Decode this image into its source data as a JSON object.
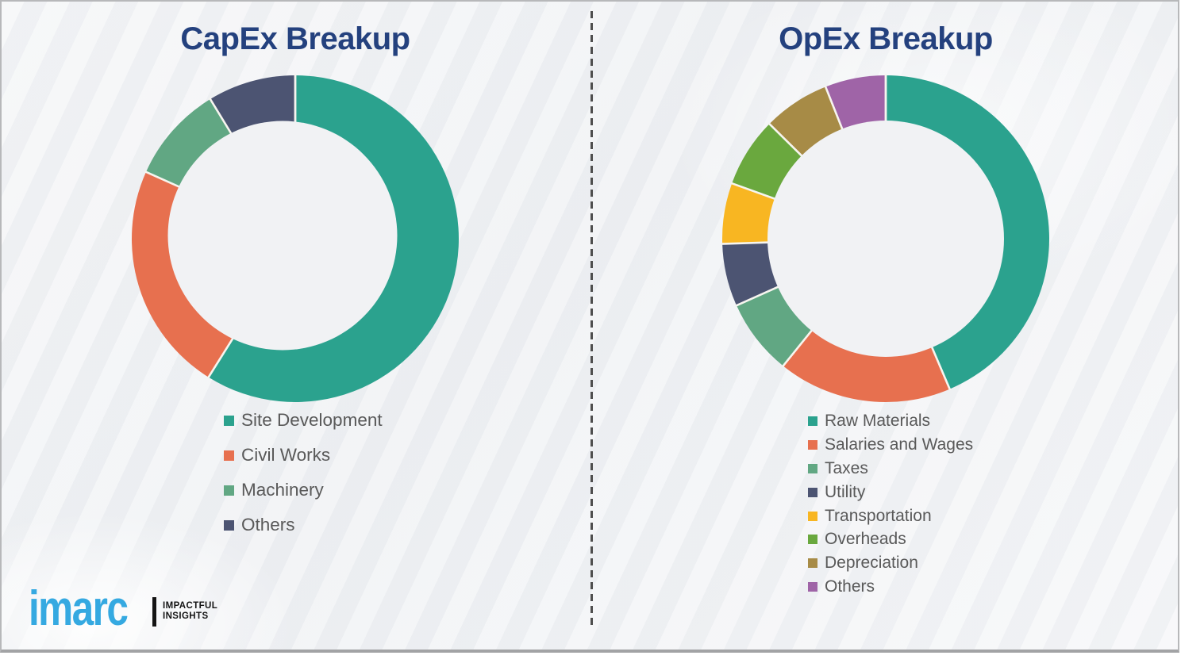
{
  "chart_data": [
    {
      "id": "capex",
      "type": "pie",
      "variant": "donut",
      "title": "CapEx Breakup",
      "unit": "percent",
      "start_angle_deg": 0,
      "direction": "clockwise",
      "legend_position": "bottom-left",
      "labels": [
        "Site Development",
        "Civil Works",
        "Machinery",
        "Others"
      ],
      "values": [
        58.9,
        22.8,
        9.6,
        8.7
      ],
      "colors": [
        "#2BA28E",
        "#E7704F",
        "#61A783",
        "#4C5472"
      ]
    },
    {
      "id": "opex",
      "type": "pie",
      "variant": "donut",
      "title": "OpEx Breakup",
      "unit": "percent",
      "start_angle_deg": 0,
      "direction": "clockwise",
      "legend_position": "bottom-left",
      "labels": [
        "Raw Materials",
        "Salaries and Wages",
        "Taxes",
        "Utility",
        "Transportation",
        "Overheads",
        "Depreciation",
        "Others"
      ],
      "values": [
        43.6,
        17.2,
        7.5,
        6.2,
        6.0,
        6.9,
        6.6,
        6.0
      ],
      "colors": [
        "#2BA28E",
        "#E7704F",
        "#61A783",
        "#4C5472",
        "#F8B622",
        "#6AA83E",
        "#A78B46",
        "#9F64A7"
      ]
    }
  ],
  "divider": {
    "style": "dashed",
    "color": "#4E4E4E"
  },
  "brand": {
    "name": "imarc",
    "tagline_line1": "IMPACTFUL",
    "tagline_line2": "INSIGHTS",
    "accent_color": "#35A9E1",
    "title_color": "#24417E"
  }
}
